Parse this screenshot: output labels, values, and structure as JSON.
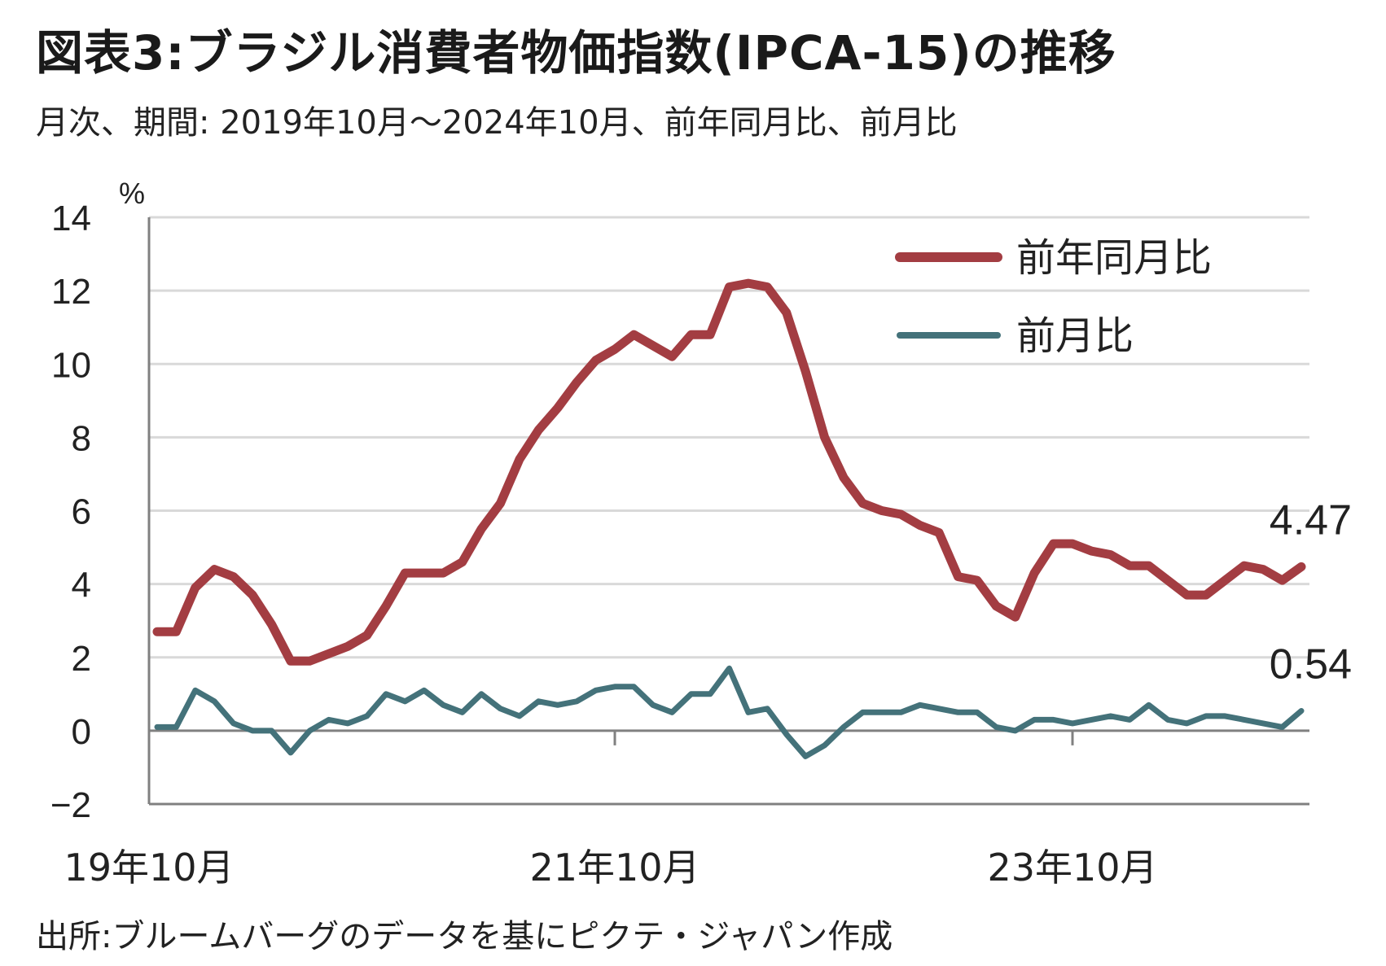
{
  "title": "図表3:ブラジル消費者物価指数(IPCA-15)の推移",
  "subtitle": "月次、期間: 2019年10月～2024年10月、前年同月比、前月比",
  "source": "出所:ブルームバーグのデータを基にピクテ・ジャパン作成",
  "colors": {
    "yoy": "#a33d42",
    "mom": "#44727a",
    "grid": "#d9d9d9",
    "axis": "#808080"
  },
  "chart_data": {
    "type": "line",
    "ylabel": "%",
    "ylim": [
      -2,
      14
    ],
    "yticks": [
      14,
      12,
      10,
      8,
      6,
      4,
      2,
      0,
      -2
    ],
    "x_start": "2019-10",
    "x_end": "2024-10",
    "x_ticks": [
      {
        "label": "19年10月",
        "month_index": 0
      },
      {
        "label": "21年10月",
        "month_index": 24
      },
      {
        "label": "23年10月",
        "month_index": 48
      }
    ],
    "grid": true,
    "legend_position": "top-right",
    "series": [
      {
        "name": "前年同月比",
        "values": [
          2.7,
          2.7,
          3.9,
          4.4,
          4.2,
          3.7,
          2.9,
          1.9,
          1.9,
          2.1,
          2.3,
          2.6,
          3.4,
          4.3,
          4.3,
          4.3,
          4.6,
          5.5,
          6.2,
          7.4,
          8.2,
          8.8,
          9.5,
          10.1,
          10.4,
          10.8,
          10.5,
          10.2,
          10.8,
          10.8,
          12.1,
          12.2,
          12.1,
          11.4,
          9.8,
          8.0,
          6.9,
          6.2,
          6.0,
          5.9,
          5.6,
          5.4,
          4.2,
          4.1,
          3.4,
          3.1,
          4.3,
          5.1,
          5.1,
          4.9,
          4.8,
          4.5,
          4.5,
          4.1,
          3.7,
          3.7,
          4.1,
          4.5,
          4.4,
          4.1,
          4.47
        ],
        "end_label": "4.47"
      },
      {
        "name": "前月比",
        "values": [
          0.1,
          0.1,
          1.1,
          0.8,
          0.2,
          0.0,
          0.0,
          -0.6,
          0.0,
          0.3,
          0.2,
          0.4,
          1.0,
          0.8,
          1.1,
          0.7,
          0.5,
          1.0,
          0.6,
          0.4,
          0.8,
          0.7,
          0.8,
          1.1,
          1.2,
          1.2,
          0.7,
          0.5,
          1.0,
          1.0,
          1.7,
          0.5,
          0.6,
          -0.1,
          -0.7,
          -0.4,
          0.1,
          0.5,
          0.5,
          0.5,
          0.7,
          0.6,
          0.5,
          0.5,
          0.1,
          0.0,
          0.3,
          0.3,
          0.2,
          0.3,
          0.4,
          0.3,
          0.7,
          0.3,
          0.2,
          0.4,
          0.4,
          0.3,
          0.2,
          0.1,
          0.54
        ],
        "end_label": "0.54"
      }
    ]
  }
}
